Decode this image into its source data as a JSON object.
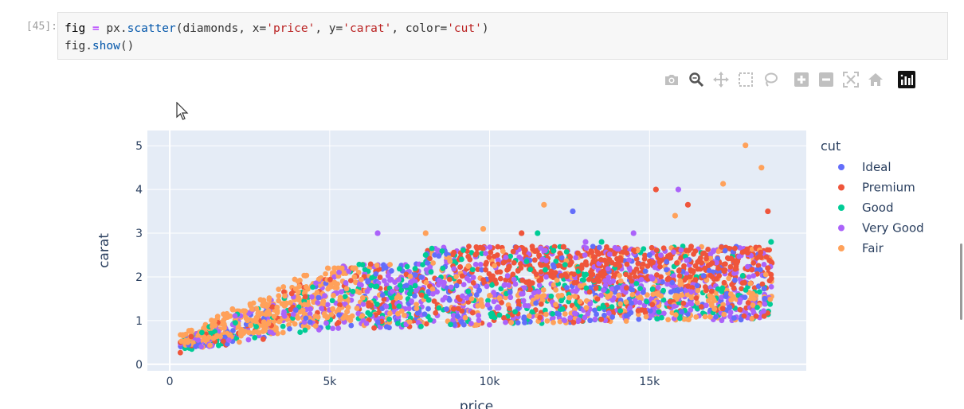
{
  "cell": {
    "prompt": "[45]:",
    "line1": {
      "v": "fig",
      "eq": " = ",
      "obj": "px.",
      "fn": "scatter",
      "a1": "(diamonds, x=",
      "s1": "'price'",
      "a2": ", y=",
      "s2": "'carat'",
      "a3": ", color=",
      "s3": "'cut'",
      "a4": ")"
    },
    "line2": {
      "obj": "fig.",
      "fn": "show",
      "rest": "()"
    }
  },
  "modebar": {
    "buttons": [
      "camera-icon",
      "zoom-icon",
      "pan-icon",
      "box-select-icon",
      "lasso-icon",
      "zoom-in-icon",
      "zoom-out-icon",
      "autoscale-icon",
      "reset-axes-icon",
      "plotly-logo-icon"
    ]
  },
  "colors": {
    "Ideal": "#636efa",
    "Premium": "#EF553B",
    "Good": "#00cc96",
    "Very Good": "#ab63fa",
    "Fair": "#FFA15A",
    "plot_bg": "#e5ecf6"
  },
  "chart_data": {
    "type": "scatter",
    "title": "",
    "xlabel": "price",
    "ylabel": "carat",
    "xlim": [
      -700,
      19900
    ],
    "ylim": [
      -0.15,
      5.35
    ],
    "x_ticks": [
      {
        "v": 0,
        "label": "0"
      },
      {
        "v": 5000,
        "label": "5k"
      },
      {
        "v": 10000,
        "label": "10k"
      },
      {
        "v": 15000,
        "label": "15k"
      }
    ],
    "y_ticks": [
      {
        "v": 0,
        "label": "0"
      },
      {
        "v": 1,
        "label": "1"
      },
      {
        "v": 2,
        "label": "2"
      },
      {
        "v": 3,
        "label": "3"
      },
      {
        "v": 4,
        "label": "4"
      },
      {
        "v": 5,
        "label": "5"
      }
    ],
    "grid": true,
    "legend": {
      "title": "cut",
      "placement": "right"
    },
    "series": [
      {
        "name": "Ideal",
        "points": [
          [
            12600,
            3.5
          ],
          [
            15000,
            2.5
          ],
          [
            17500,
            1.3
          ],
          [
            18600,
            1.5
          ],
          [
            9000,
            1.1
          ],
          [
            16000,
            1.2
          ]
        ]
      },
      {
        "name": "Premium",
        "points": [
          [
            15200,
            4.0
          ],
          [
            16200,
            3.65
          ],
          [
            18700,
            3.5
          ],
          [
            11000,
            3.0
          ],
          [
            18700,
            2.2
          ],
          [
            14000,
            2.3
          ]
        ]
      },
      {
        "name": "Good",
        "points": [
          [
            11500,
            3.0
          ],
          [
            13500,
            2.8
          ],
          [
            18800,
            2.8
          ],
          [
            12000,
            2.6
          ],
          [
            8000,
            2.5
          ]
        ]
      },
      {
        "name": "Very Good",
        "points": [
          [
            15900,
            4.0
          ],
          [
            6500,
            3.0
          ],
          [
            14500,
            3.0
          ],
          [
            13000,
            2.8
          ],
          [
            17000,
            2.6
          ]
        ]
      },
      {
        "name": "Fair",
        "points": [
          [
            18000,
            5.01
          ],
          [
            18500,
            4.5
          ],
          [
            17300,
            4.13
          ],
          [
            15800,
            3.4
          ],
          [
            11700,
            3.65
          ],
          [
            9800,
            3.1
          ],
          [
            8000,
            3.0
          ]
        ]
      }
    ]
  }
}
